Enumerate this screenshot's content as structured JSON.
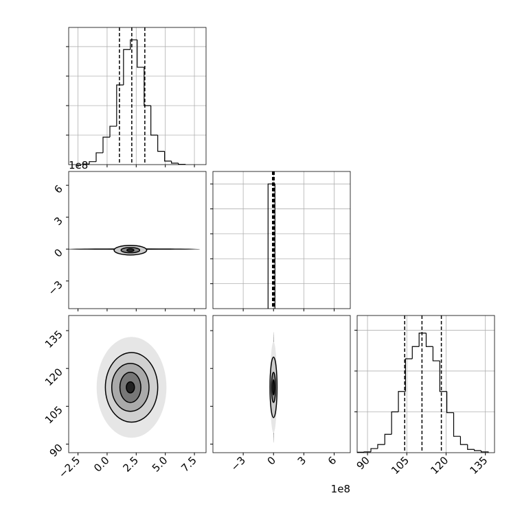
{
  "chart_data": [
    {
      "type": "histogram",
      "xlim": [
        -3.3,
        8.5
      ],
      "ylim": [
        0,
        4.65
      ],
      "yticks": [
        1,
        2,
        3,
        4
      ],
      "grid": true,
      "bins": [
        -2.12,
        -1.53,
        -0.94,
        -0.35,
        0.24,
        0.82,
        1.41,
        2.0,
        2.59,
        3.18,
        3.76,
        4.35,
        4.94,
        5.53,
        6.12,
        6.71
      ],
      "counts": [
        0.02,
        0.1,
        0.4,
        0.93,
        1.3,
        2.7,
        3.9,
        4.23,
        3.3,
        2.0,
        1.0,
        0.45,
        0.12,
        0.05,
        0.01
      ],
      "quantiles": [
        1.06,
        2.12,
        3.24
      ]
    },
    {
      "type": "contour",
      "xlim": [
        -3.3,
        8.5
      ],
      "ylim": [
        -5.6,
        7.3
      ],
      "y_offset": "1e8",
      "yticks": [
        {
          "value": -3,
          "label": "−3"
        },
        0,
        3,
        6
      ],
      "contours": [
        {
          "cx": 2.2,
          "cy": 0,
          "rx": 5.8,
          "ry": 0.06,
          "fill": "#000000",
          "stroke": "none"
        },
        {
          "cx": 2.0,
          "cy": -0.1,
          "rx": 1.4,
          "ry": 0.45,
          "fill": "#cccccc",
          "stroke": "#000000"
        },
        {
          "cx": 2.0,
          "cy": -0.1,
          "rx": 0.8,
          "ry": 0.25,
          "fill": "#888888",
          "stroke": "#000000"
        },
        {
          "cx": 2.0,
          "cy": -0.1,
          "rx": 0.3,
          "ry": 0.12,
          "fill": "#333333",
          "stroke": "#000000"
        }
      ]
    },
    {
      "type": "histogram",
      "xlim": [
        -6,
        7.6
      ],
      "ylim": [
        0,
        5.5
      ],
      "yticks": [
        1,
        2,
        3,
        4,
        5
      ],
      "grid": true,
      "bins": [
        -0.54,
        0.14
      ],
      "counts": [
        5
      ],
      "quantiles": [
        -0.1,
        0,
        0.07
      ]
    },
    {
      "type": "contour",
      "xlim": [
        -3.3,
        8.5
      ],
      "ylim": [
        86.6,
        141
      ],
      "xticks": [
        {
          "value": -2.5,
          "label": "−2.5"
        },
        {
          "value": 0,
          "label": "0.0"
        },
        {
          "value": 2.5,
          "label": "2.5"
        },
        {
          "value": 5,
          "label": "5.0"
        },
        {
          "value": 7.5,
          "label": "7.5"
        }
      ],
      "yticks": [
        90,
        105,
        120,
        135
      ],
      "contours": [
        {
          "cx": 2.1,
          "cy": 112.5,
          "rx": 3.0,
          "ry": 20,
          "fill": "#e6e6e6",
          "stroke": "none"
        },
        {
          "cx": 2.1,
          "cy": 112.5,
          "rx": 2.25,
          "ry": 13.8,
          "fill": "#d0d0d0",
          "stroke": "#000000"
        },
        {
          "cx": 2.0,
          "cy": 112.5,
          "rx": 1.6,
          "ry": 9.5,
          "fill": "#aaaaaa",
          "stroke": "#000000"
        },
        {
          "cx": 2.0,
          "cy": 112.5,
          "rx": 0.9,
          "ry": 6,
          "fill": "#777777",
          "stroke": "#000000"
        },
        {
          "cx": 2.0,
          "cy": 112.5,
          "rx": 0.35,
          "ry": 2.2,
          "fill": "#222222",
          "stroke": "#000000"
        }
      ]
    },
    {
      "type": "contour",
      "xlim": [
        -6,
        7.6
      ],
      "ylim": [
        86.6,
        141
      ],
      "x_offset": "1e8",
      "xticks": [
        {
          "value": -3,
          "label": "−3"
        },
        0,
        3,
        6
      ],
      "contours": [
        {
          "cx": 0,
          "cy": 112.5,
          "rx": 0.02,
          "ry": 22,
          "fill": "#000000",
          "stroke": "none"
        },
        {
          "cx": 0,
          "cy": 112.5,
          "rx": 0.35,
          "ry": 18,
          "fill": "#e6e6e6",
          "stroke": "none"
        },
        {
          "cx": 0,
          "cy": 112.5,
          "rx": 0.35,
          "ry": 12,
          "fill": "#cccccc",
          "stroke": "#000000"
        },
        {
          "cx": 0,
          "cy": 112.5,
          "rx": 0.2,
          "ry": 6,
          "fill": "#888888",
          "stroke": "#000000"
        },
        {
          "cx": 0,
          "cy": 112.5,
          "rx": 0.08,
          "ry": 3,
          "fill": "#333333",
          "stroke": "#000000"
        }
      ]
    },
    {
      "type": "histogram",
      "xlim": [
        86.05,
        138.5
      ],
      "ylim": [
        0,
        3.36
      ],
      "yticks": [
        1,
        2,
        3
      ],
      "grid": true,
      "xticks": [
        90,
        105,
        120,
        135
      ],
      "bins": [
        86.05,
        88.7,
        91.3,
        93.9,
        96.6,
        99.2,
        101.8,
        104.5,
        107.1,
        109.7,
        112.4,
        115.0,
        117.6,
        120.3,
        122.9,
        125.5,
        128.2,
        130.8,
        133.4,
        136.1
      ],
      "counts": [
        0.01,
        0.02,
        0.1,
        0.2,
        0.45,
        1.0,
        1.5,
        2.3,
        2.6,
        2.93,
        2.6,
        2.25,
        1.5,
        0.98,
        0.4,
        0.2,
        0.08,
        0.05,
        0.02
      ],
      "quantiles": [
        104.2,
        110.8,
        118.2
      ]
    }
  ]
}
